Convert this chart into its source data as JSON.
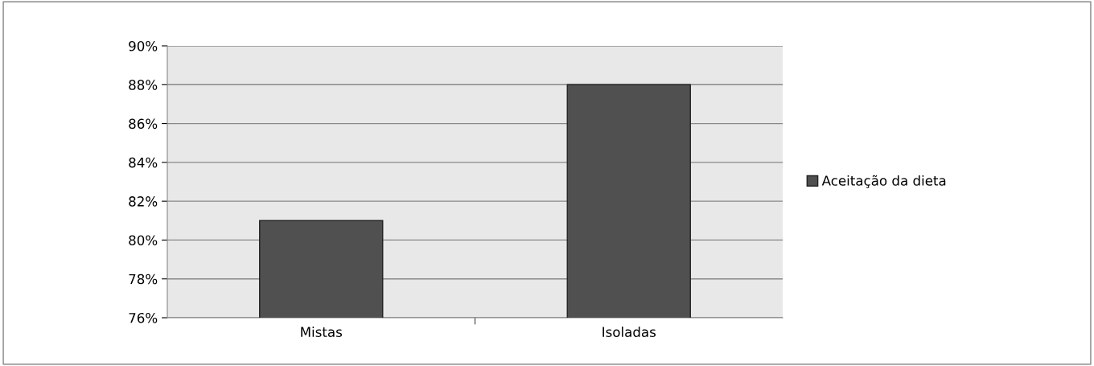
{
  "chart_data": {
    "type": "bar",
    "categories": [
      "Mistas",
      "Isoladas"
    ],
    "series": [
      {
        "name": "Aceitação da dieta",
        "color": "#505050",
        "values": [
          81,
          88
        ]
      }
    ],
    "ylim": [
      76,
      90
    ],
    "yticks": [
      {
        "value": 76,
        "label": "76%"
      },
      {
        "value": 78,
        "label": "78%"
      },
      {
        "value": 80,
        "label": "80%"
      },
      {
        "value": 82,
        "label": "82%"
      },
      {
        "value": 84,
        "label": "84%"
      },
      {
        "value": 86,
        "label": "86%"
      },
      {
        "value": 88,
        "label": "88%"
      },
      {
        "value": 90,
        "label": "90%"
      }
    ],
    "grid": "y",
    "legend": "right"
  }
}
